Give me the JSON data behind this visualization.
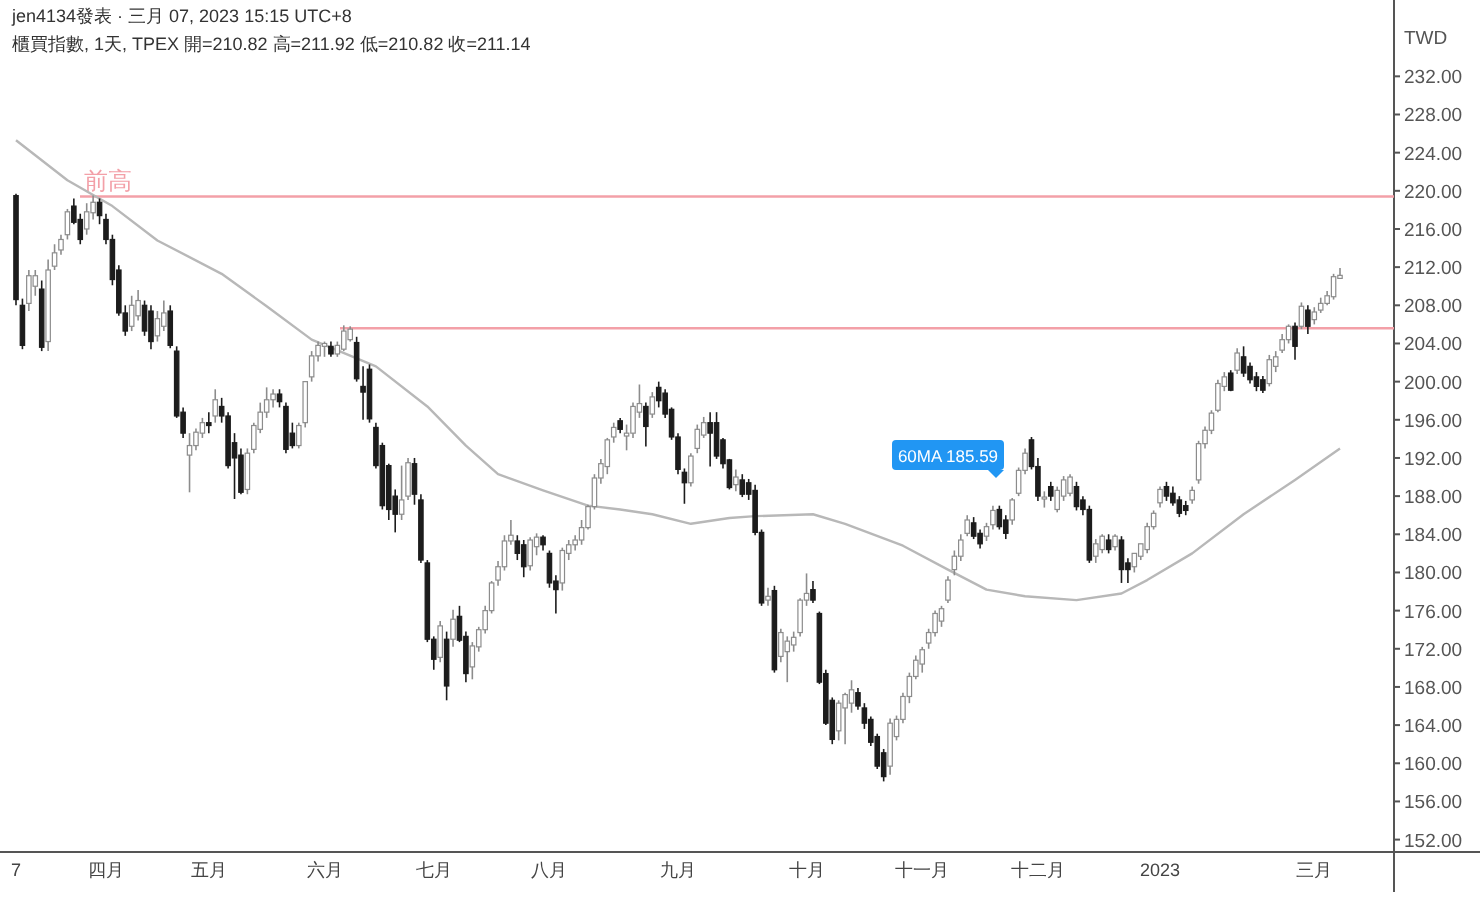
{
  "chart_data": {
    "type": "candlestick",
    "title": "櫃買指數, 1天, TPEX  開=210.82 高=211.92 低=210.82 收=211.14",
    "annotations": [
      "jen4134發表 · 三月 07, 2023 15:15 UTC+8",
      "60MA 185.59"
    ],
    "ylabel": "TWD",
    "categories": [
      "7",
      null,
      null,
      null,
      null,
      null,
      null,
      null,
      null,
      null,
      null,
      null,
      null,
      null,
      "四月",
      null,
      null,
      null,
      null,
      null,
      null,
      null,
      null,
      null,
      null,
      null,
      null,
      null,
      null,
      null,
      "五月",
      null,
      null,
      null,
      null,
      null,
      null,
      null,
      null,
      null,
      null,
      null,
      null,
      null,
      null,
      null,
      null,
      null,
      "六月",
      null,
      null,
      null,
      null,
      null,
      null,
      null,
      null,
      null,
      null,
      null,
      null,
      null,
      null,
      null,
      null,
      "七月",
      null,
      null,
      null,
      null,
      null,
      null,
      null,
      null,
      null,
      null,
      null,
      null,
      null,
      null,
      null,
      null,
      null,
      "八月",
      null,
      null,
      null,
      null,
      null,
      null,
      null,
      null,
      null,
      null,
      null,
      null,
      null,
      null,
      null,
      null,
      null,
      null,
      null,
      "九月",
      null,
      null,
      null,
      null,
      null,
      null,
      null,
      null,
      null,
      null,
      null,
      null,
      null,
      null,
      null,
      null,
      null,
      null,
      null,
      "十月",
      null,
      null,
      null,
      null,
      null,
      null,
      null,
      null,
      null,
      null,
      null,
      null,
      null,
      null,
      null,
      null,
      null,
      "十一月",
      null,
      null,
      null,
      null,
      null,
      null,
      null,
      null,
      null,
      null,
      null,
      null,
      null,
      null,
      null,
      null,
      null,
      "十二月",
      null,
      null,
      null,
      null,
      null,
      null,
      null,
      null,
      null,
      null,
      null,
      null,
      null,
      null,
      null,
      null,
      null,
      null,
      "2023",
      null,
      null,
      null,
      null,
      null,
      null,
      null,
      null,
      null,
      null,
      null,
      null,
      null,
      null,
      null,
      null,
      null,
      null,
      null,
      null,
      null,
      null,
      null,
      "三月",
      null,
      null,
      null,
      null
    ],
    "ohlc": [
      [
        219.5,
        219.7,
        208.0,
        208.6
      ],
      [
        208.0,
        208.7,
        203.4,
        203.8
      ],
      [
        208.2,
        211.7,
        207.4,
        211.1
      ],
      [
        210.0,
        211.7,
        209.0,
        211.1
      ],
      [
        209.7,
        210.6,
        203.2,
        203.6
      ],
      [
        204.2,
        212.8,
        203.2,
        211.7
      ],
      [
        212.1,
        214.4,
        211.7,
        213.5
      ],
      [
        213.8,
        215.4,
        213.3,
        214.9
      ],
      [
        215.4,
        218.1,
        214.9,
        217.8
      ],
      [
        218.4,
        219.2,
        216.5,
        216.7
      ],
      [
        217.0,
        217.6,
        214.4,
        214.9
      ],
      [
        216.0,
        218.7,
        215.4,
        217.8
      ],
      [
        217.7,
        219.5,
        217.0,
        218.8
      ],
      [
        218.8,
        219.2,
        216.5,
        217.4
      ],
      [
        217.0,
        217.6,
        214.4,
        214.9
      ],
      [
        214.9,
        215.4,
        210.1,
        210.7
      ],
      [
        211.7,
        212.2,
        206.9,
        207.2
      ],
      [
        207.2,
        208.0,
        204.8,
        205.3
      ],
      [
        205.8,
        209.0,
        205.3,
        208.0
      ],
      [
        206.9,
        209.6,
        206.4,
        208.5
      ],
      [
        208.0,
        208.5,
        204.8,
        205.3
      ],
      [
        207.4,
        208.0,
        203.4,
        204.2
      ],
      [
        204.8,
        207.4,
        204.2,
        206.6
      ],
      [
        205.8,
        208.5,
        205.3,
        207.2
      ],
      [
        207.4,
        208.0,
        203.5,
        203.8
      ],
      [
        203.2,
        203.7,
        196.2,
        196.4
      ],
      [
        196.8,
        197.3,
        194.1,
        194.6
      ],
      [
        192.3,
        194.6,
        188.4,
        193.3
      ],
      [
        193.3,
        195.1,
        192.8,
        194.7
      ],
      [
        194.6,
        196.2,
        194.1,
        195.7
      ],
      [
        195.7,
        196.8,
        194.6,
        195.4
      ],
      [
        196.4,
        199.2,
        195.7,
        198.1
      ],
      [
        197.4,
        198.3,
        195.7,
        196.4
      ],
      [
        196.4,
        196.8,
        190.9,
        191.2
      ],
      [
        193.6,
        194.6,
        187.7,
        192.0
      ],
      [
        192.3,
        193.0,
        188.2,
        188.4
      ],
      [
        188.7,
        193.0,
        188.2,
        192.5
      ],
      [
        192.9,
        195.7,
        192.5,
        195.4
      ],
      [
        195.0,
        197.8,
        194.6,
        196.8
      ],
      [
        196.8,
        199.4,
        196.2,
        198.1
      ],
      [
        198.1,
        199.2,
        197.3,
        198.7
      ],
      [
        198.7,
        199.2,
        197.3,
        197.9
      ],
      [
        197.4,
        197.8,
        192.5,
        192.9
      ],
      [
        194.6,
        195.7,
        193.0,
        193.3
      ],
      [
        193.3,
        195.7,
        193.0,
        195.4
      ],
      [
        195.7,
        200.0,
        195.2,
        200.0
      ],
      [
        200.5,
        203.2,
        200.0,
        202.7
      ],
      [
        202.7,
        204.2,
        202.1,
        203.8
      ],
      [
        203.7,
        204.2,
        202.6,
        204.0
      ],
      [
        203.7,
        204.2,
        202.6,
        202.9
      ],
      [
        202.9,
        204.2,
        202.6,
        203.8
      ],
      [
        203.4,
        205.9,
        203.2,
        205.3
      ],
      [
        204.4,
        205.8,
        204.2,
        205.5
      ],
      [
        204.1,
        204.7,
        200.0,
        200.3
      ],
      [
        199.5,
        201.6,
        196.0,
        198.9
      ],
      [
        201.3,
        201.8,
        195.7,
        196.1
      ],
      [
        195.2,
        195.7,
        190.9,
        191.2
      ],
      [
        193.3,
        193.6,
        186.6,
        187.0
      ],
      [
        191.2,
        191.4,
        185.5,
        186.6
      ],
      [
        188.0,
        188.7,
        184.2,
        186.1
      ],
      [
        186.1,
        191.2,
        185.5,
        187.6
      ],
      [
        188.0,
        192.0,
        187.6,
        191.5
      ],
      [
        191.4,
        192.0,
        187.1,
        188.2
      ],
      [
        187.6,
        188.2,
        181.0,
        181.3
      ],
      [
        181.0,
        181.3,
        172.7,
        173.0
      ],
      [
        173.0,
        173.3,
        169.8,
        170.9
      ],
      [
        171.1,
        174.9,
        170.6,
        174.4
      ],
      [
        173.0,
        173.8,
        166.6,
        168.1
      ],
      [
        173.0,
        176.1,
        172.2,
        175.1
      ],
      [
        175.4,
        176.5,
        172.7,
        172.9
      ],
      [
        173.3,
        173.8,
        168.5,
        169.4
      ],
      [
        170.1,
        172.7,
        168.8,
        172.3
      ],
      [
        172.2,
        174.3,
        171.7,
        174.0
      ],
      [
        174.0,
        176.5,
        173.6,
        176.0
      ],
      [
        176.0,
        179.1,
        175.7,
        178.9
      ],
      [
        179.2,
        181.2,
        178.6,
        180.6
      ],
      [
        180.6,
        183.9,
        180.2,
        183.3
      ],
      [
        183.3,
        185.5,
        182.9,
        183.9
      ],
      [
        183.3,
        183.9,
        181.3,
        182.0
      ],
      [
        182.9,
        183.4,
        179.5,
        180.6
      ],
      [
        180.7,
        183.7,
        180.2,
        183.4
      ],
      [
        182.7,
        184.1,
        181.8,
        183.7
      ],
      [
        183.7,
        183.9,
        182.3,
        182.9
      ],
      [
        182.0,
        182.3,
        178.4,
        178.9
      ],
      [
        179.1,
        179.7,
        175.7,
        178.2
      ],
      [
        178.9,
        182.6,
        178.1,
        182.3
      ],
      [
        182.0,
        183.4,
        181.3,
        182.9
      ],
      [
        182.9,
        183.9,
        182.3,
        183.4
      ],
      [
        183.4,
        185.5,
        182.9,
        184.7
      ],
      [
        184.7,
        187.1,
        184.5,
        186.9
      ],
      [
        186.9,
        190.3,
        186.6,
        189.9
      ],
      [
        189.9,
        191.9,
        189.3,
        191.4
      ],
      [
        191.1,
        194.1,
        190.3,
        193.9
      ],
      [
        194.2,
        195.7,
        193.6,
        195.2
      ],
      [
        195.9,
        196.2,
        194.6,
        195.0
      ],
      [
        194.3,
        195.5,
        192.8,
        194.6
      ],
      [
        194.6,
        197.8,
        194.1,
        197.4
      ],
      [
        196.8,
        199.7,
        196.2,
        197.7
      ],
      [
        197.4,
        197.8,
        193.2,
        195.3
      ],
      [
        196.6,
        198.9,
        196.2,
        198.4
      ],
      [
        199.4,
        200.0,
        197.3,
        198.0
      ],
      [
        198.8,
        199.2,
        196.2,
        196.6
      ],
      [
        197.1,
        197.3,
        193.9,
        194.2
      ],
      [
        194.2,
        194.6,
        190.3,
        190.8
      ],
      [
        190.5,
        190.9,
        187.2,
        189.4
      ],
      [
        189.4,
        192.5,
        189.0,
        192.2
      ],
      [
        193.0,
        195.5,
        192.5,
        195.0
      ],
      [
        194.4,
        196.3,
        194.1,
        195.7
      ],
      [
        195.7,
        196.8,
        191.1,
        194.6
      ],
      [
        195.7,
        196.8,
        191.9,
        192.2
      ],
      [
        193.9,
        194.1,
        190.9,
        191.4
      ],
      [
        191.8,
        191.9,
        188.7,
        188.9
      ],
      [
        189.2,
        190.8,
        188.5,
        190.0
      ],
      [
        189.7,
        190.3,
        187.9,
        188.2
      ],
      [
        189.4,
        189.8,
        187.6,
        188.2
      ],
      [
        188.6,
        189.2,
        183.9,
        184.2
      ],
      [
        184.2,
        184.5,
        176.5,
        176.8
      ],
      [
        177.1,
        178.4,
        176.5,
        177.5
      ],
      [
        178.1,
        178.6,
        169.5,
        169.8
      ],
      [
        171.2,
        174.1,
        170.6,
        173.7
      ],
      [
        171.7,
        173.3,
        168.5,
        172.8
      ],
      [
        172.4,
        173.8,
        171.7,
        173.2
      ],
      [
        173.7,
        177.3,
        173.3,
        177.1
      ],
      [
        177.1,
        179.9,
        176.5,
        177.8
      ],
      [
        178.2,
        179.1,
        176.8,
        177.1
      ],
      [
        175.7,
        175.9,
        168.3,
        168.5
      ],
      [
        169.4,
        169.8,
        164.0,
        164.2
      ],
      [
        166.6,
        166.9,
        162.0,
        162.5
      ],
      [
        163.4,
        166.6,
        162.4,
        166.3
      ],
      [
        165.8,
        167.4,
        162.0,
        167.2
      ],
      [
        166.3,
        168.7,
        165.3,
        167.7
      ],
      [
        167.4,
        167.9,
        165.6,
        166.0
      ],
      [
        165.8,
        166.3,
        163.6,
        164.2
      ],
      [
        164.6,
        164.9,
        161.8,
        162.2
      ],
      [
        162.8,
        163.1,
        159.4,
        159.7
      ],
      [
        161.1,
        161.5,
        158.1,
        158.6
      ],
      [
        159.7,
        164.7,
        158.8,
        164.2
      ],
      [
        162.8,
        165.0,
        162.4,
        164.6
      ],
      [
        164.6,
        167.4,
        164.2,
        167.0
      ],
      [
        167.0,
        169.5,
        166.3,
        169.1
      ],
      [
        169.1,
        171.3,
        168.8,
        170.8
      ],
      [
        170.4,
        172.2,
        169.5,
        171.9
      ],
      [
        172.6,
        174.1,
        172.0,
        173.7
      ],
      [
        173.7,
        176.0,
        173.3,
        175.7
      ],
      [
        174.9,
        176.5,
        174.3,
        176.2
      ],
      [
        177.1,
        179.6,
        176.8,
        179.2
      ],
      [
        180.3,
        182.3,
        179.7,
        181.7
      ],
      [
        181.7,
        184.0,
        181.2,
        183.4
      ],
      [
        184.1,
        186.0,
        183.8,
        185.5
      ],
      [
        185.2,
        185.8,
        183.5,
        183.8
      ],
      [
        184.1,
        184.5,
        182.5,
        183.0
      ],
      [
        183.8,
        185.2,
        183.3,
        184.8
      ],
      [
        185.0,
        187.0,
        184.5,
        186.5
      ],
      [
        186.6,
        187.0,
        184.5,
        184.8
      ],
      [
        185.5,
        186.0,
        183.5,
        184.1
      ],
      [
        185.5,
        187.8,
        185.0,
        187.6
      ],
      [
        188.3,
        191.0,
        188.0,
        190.7
      ],
      [
        190.7,
        193.0,
        190.3,
        192.5
      ],
      [
        193.9,
        194.2,
        190.8,
        191.1
      ],
      [
        191.1,
        192.0,
        187.5,
        188.0
      ],
      [
        187.7,
        188.5,
        186.8,
        187.9
      ],
      [
        189.0,
        189.5,
        187.5,
        188.0
      ],
      [
        186.6,
        189.0,
        186.3,
        188.6
      ],
      [
        188.0,
        190.1,
        187.5,
        189.7
      ],
      [
        188.3,
        190.3,
        188.0,
        190.0
      ],
      [
        189.0,
        189.5,
        186.5,
        186.9
      ],
      [
        187.6,
        188.0,
        186.0,
        186.6
      ],
      [
        186.6,
        187.0,
        181.0,
        181.3
      ],
      [
        181.7,
        183.5,
        181.0,
        183.0
      ],
      [
        182.4,
        184.0,
        182.0,
        183.8
      ],
      [
        183.4,
        184.0,
        182.0,
        182.4
      ],
      [
        182.7,
        184.0,
        182.3,
        183.8
      ],
      [
        183.4,
        183.8,
        178.9,
        180.3
      ],
      [
        181.0,
        181.5,
        178.9,
        180.3
      ],
      [
        180.6,
        182.0,
        180.0,
        182.0
      ],
      [
        181.7,
        183.0,
        181.3,
        183.0
      ],
      [
        182.4,
        185.2,
        182.0,
        184.8
      ],
      [
        184.8,
        186.5,
        184.5,
        186.2
      ],
      [
        187.3,
        189.0,
        186.8,
        188.7
      ],
      [
        189.0,
        189.5,
        187.5,
        188.0
      ],
      [
        188.3,
        189.0,
        187.0,
        187.3
      ],
      [
        187.6,
        188.0,
        185.8,
        186.2
      ],
      [
        187.0,
        187.5,
        186.0,
        186.5
      ],
      [
        187.6,
        189.0,
        187.2,
        188.6
      ],
      [
        189.7,
        193.8,
        189.3,
        193.5
      ],
      [
        193.5,
        195.3,
        193.0,
        194.9
      ],
      [
        194.9,
        197.0,
        194.5,
        196.7
      ],
      [
        197.0,
        200.2,
        196.8,
        199.8
      ],
      [
        199.5,
        201.0,
        199.0,
        200.5
      ],
      [
        200.9,
        201.2,
        199.0,
        199.1
      ],
      [
        201.2,
        203.5,
        200.8,
        203.0
      ],
      [
        202.6,
        203.7,
        200.5,
        200.9
      ],
      [
        201.6,
        202.0,
        199.8,
        200.2
      ],
      [
        200.5,
        201.0,
        199.0,
        199.5
      ],
      [
        200.2,
        200.6,
        198.8,
        199.1
      ],
      [
        199.8,
        202.8,
        199.5,
        202.3
      ],
      [
        201.6,
        203.2,
        201.0,
        202.6
      ],
      [
        203.3,
        205.0,
        203.0,
        204.4
      ],
      [
        204.4,
        206.0,
        204.0,
        205.8
      ],
      [
        205.8,
        206.2,
        202.3,
        203.7
      ],
      [
        205.8,
        208.3,
        205.5,
        207.9
      ],
      [
        207.5,
        208.0,
        205.0,
        205.8
      ],
      [
        206.5,
        207.8,
        206.0,
        207.3
      ],
      [
        207.5,
        208.8,
        207.2,
        208.2
      ],
      [
        208.2,
        209.5,
        208.0,
        209.0
      ],
      [
        208.9,
        211.3,
        208.6,
        211.0
      ],
      [
        210.82,
        211.92,
        210.82,
        211.14
      ]
    ],
    "series": [
      {
        "type": "line",
        "color": "#b8b8b8",
        "values": [
          225.3,
          null,
          null,
          null,
          null,
          null,
          null,
          null,
          221.1,
          null,
          null,
          null,
          null,
          null,
          null,
          218.4,
          null,
          null,
          null,
          null,
          null,
          null,
          214.8,
          null,
          null,
          null,
          null,
          null,
          null,
          null,
          null,
          null,
          211.3,
          null,
          null,
          null,
          null,
          null,
          null,
          207.9,
          null,
          null,
          null,
          null,
          null,
          null,
          204.4,
          null,
          null,
          null,
          null,
          null,
          null,
          null,
          null,
          null,
          201.6,
          null,
          null,
          null,
          null,
          null,
          null,
          null,
          197.4,
          null,
          null,
          null,
          null,
          null,
          193.3,
          null,
          null,
          null,
          null,
          190.3,
          null,
          null,
          null,
          null,
          null,
          null,
          188.6,
          null,
          null,
          null,
          null,
          null,
          null,
          187.0,
          null,
          null,
          null,
          null,
          186.6,
          null,
          null,
          null,
          null,
          186.1,
          null,
          null,
          null,
          null,
          null,
          185.1,
          null,
          null,
          null,
          null,
          null,
          185.7,
          null,
          null,
          null,
          185.9,
          null,
          null,
          null,
          null,
          null,
          null,
          null,
          null,
          186.1,
          null,
          null,
          null,
          null,
          185.1,
          null,
          null,
          null,
          null,
          null,
          null,
          null,
          null,
          182.8,
          null,
          null,
          null,
          null,
          null,
          null,
          180.3,
          null,
          null,
          null,
          null,
          null,
          178.2,
          null,
          null,
          null,
          null,
          null,
          177.5,
          null,
          null,
          null,
          null,
          null,
          null,
          null,
          177.1,
          null,
          null,
          null,
          null,
          null,
          null,
          177.8,
          null,
          null,
          null,
          179.2,
          null,
          null,
          null,
          null,
          null,
          null,
          182.0,
          null,
          null,
          null,
          null,
          null,
          null,
          null,
          186.1,
          null,
          null,
          null,
          null,
          null,
          null,
          null,
          189.7,
          null,
          null,
          null,
          null,
          null,
          null,
          193.0
        ]
      }
    ],
    "ylim": [
      150.7,
      240.0
    ],
    "yticks": [
      {
        "value": 232,
        "label": "232.00"
      },
      {
        "value": 228,
        "label": "228.00"
      },
      {
        "value": 224,
        "label": "224.00"
      },
      {
        "value": 220,
        "label": "220.00"
      },
      {
        "value": 216,
        "label": "216.00"
      },
      {
        "value": 212,
        "label": "212.00"
      },
      {
        "value": 208,
        "label": "208.00"
      },
      {
        "value": 204,
        "label": "204.00"
      },
      {
        "value": 200,
        "label": "200.00"
      },
      {
        "value": 196,
        "label": "196.00"
      },
      {
        "value": 192,
        "label": "192.00"
      },
      {
        "value": 188,
        "label": "188.00"
      },
      {
        "value": 184,
        "label": "184.00"
      },
      {
        "value": 180,
        "label": "180.00"
      },
      {
        "value": 176,
        "label": "176.00"
      },
      {
        "value": 172,
        "label": "172.00"
      },
      {
        "value": 168,
        "label": "168.00"
      },
      {
        "value": 164,
        "label": "164.00"
      },
      {
        "value": 160,
        "label": "160.00"
      },
      {
        "value": 156,
        "label": "156.00"
      },
      {
        "value": 152,
        "label": "152.00"
      }
    ],
    "ref_lines": [
      {
        "axis": "y",
        "value": 219.4,
        "label": "前高",
        "color": "#f3a0a8"
      },
      {
        "axis": "y",
        "value": 205.6,
        "color": "#f3a0a8"
      }
    ]
  }
}
